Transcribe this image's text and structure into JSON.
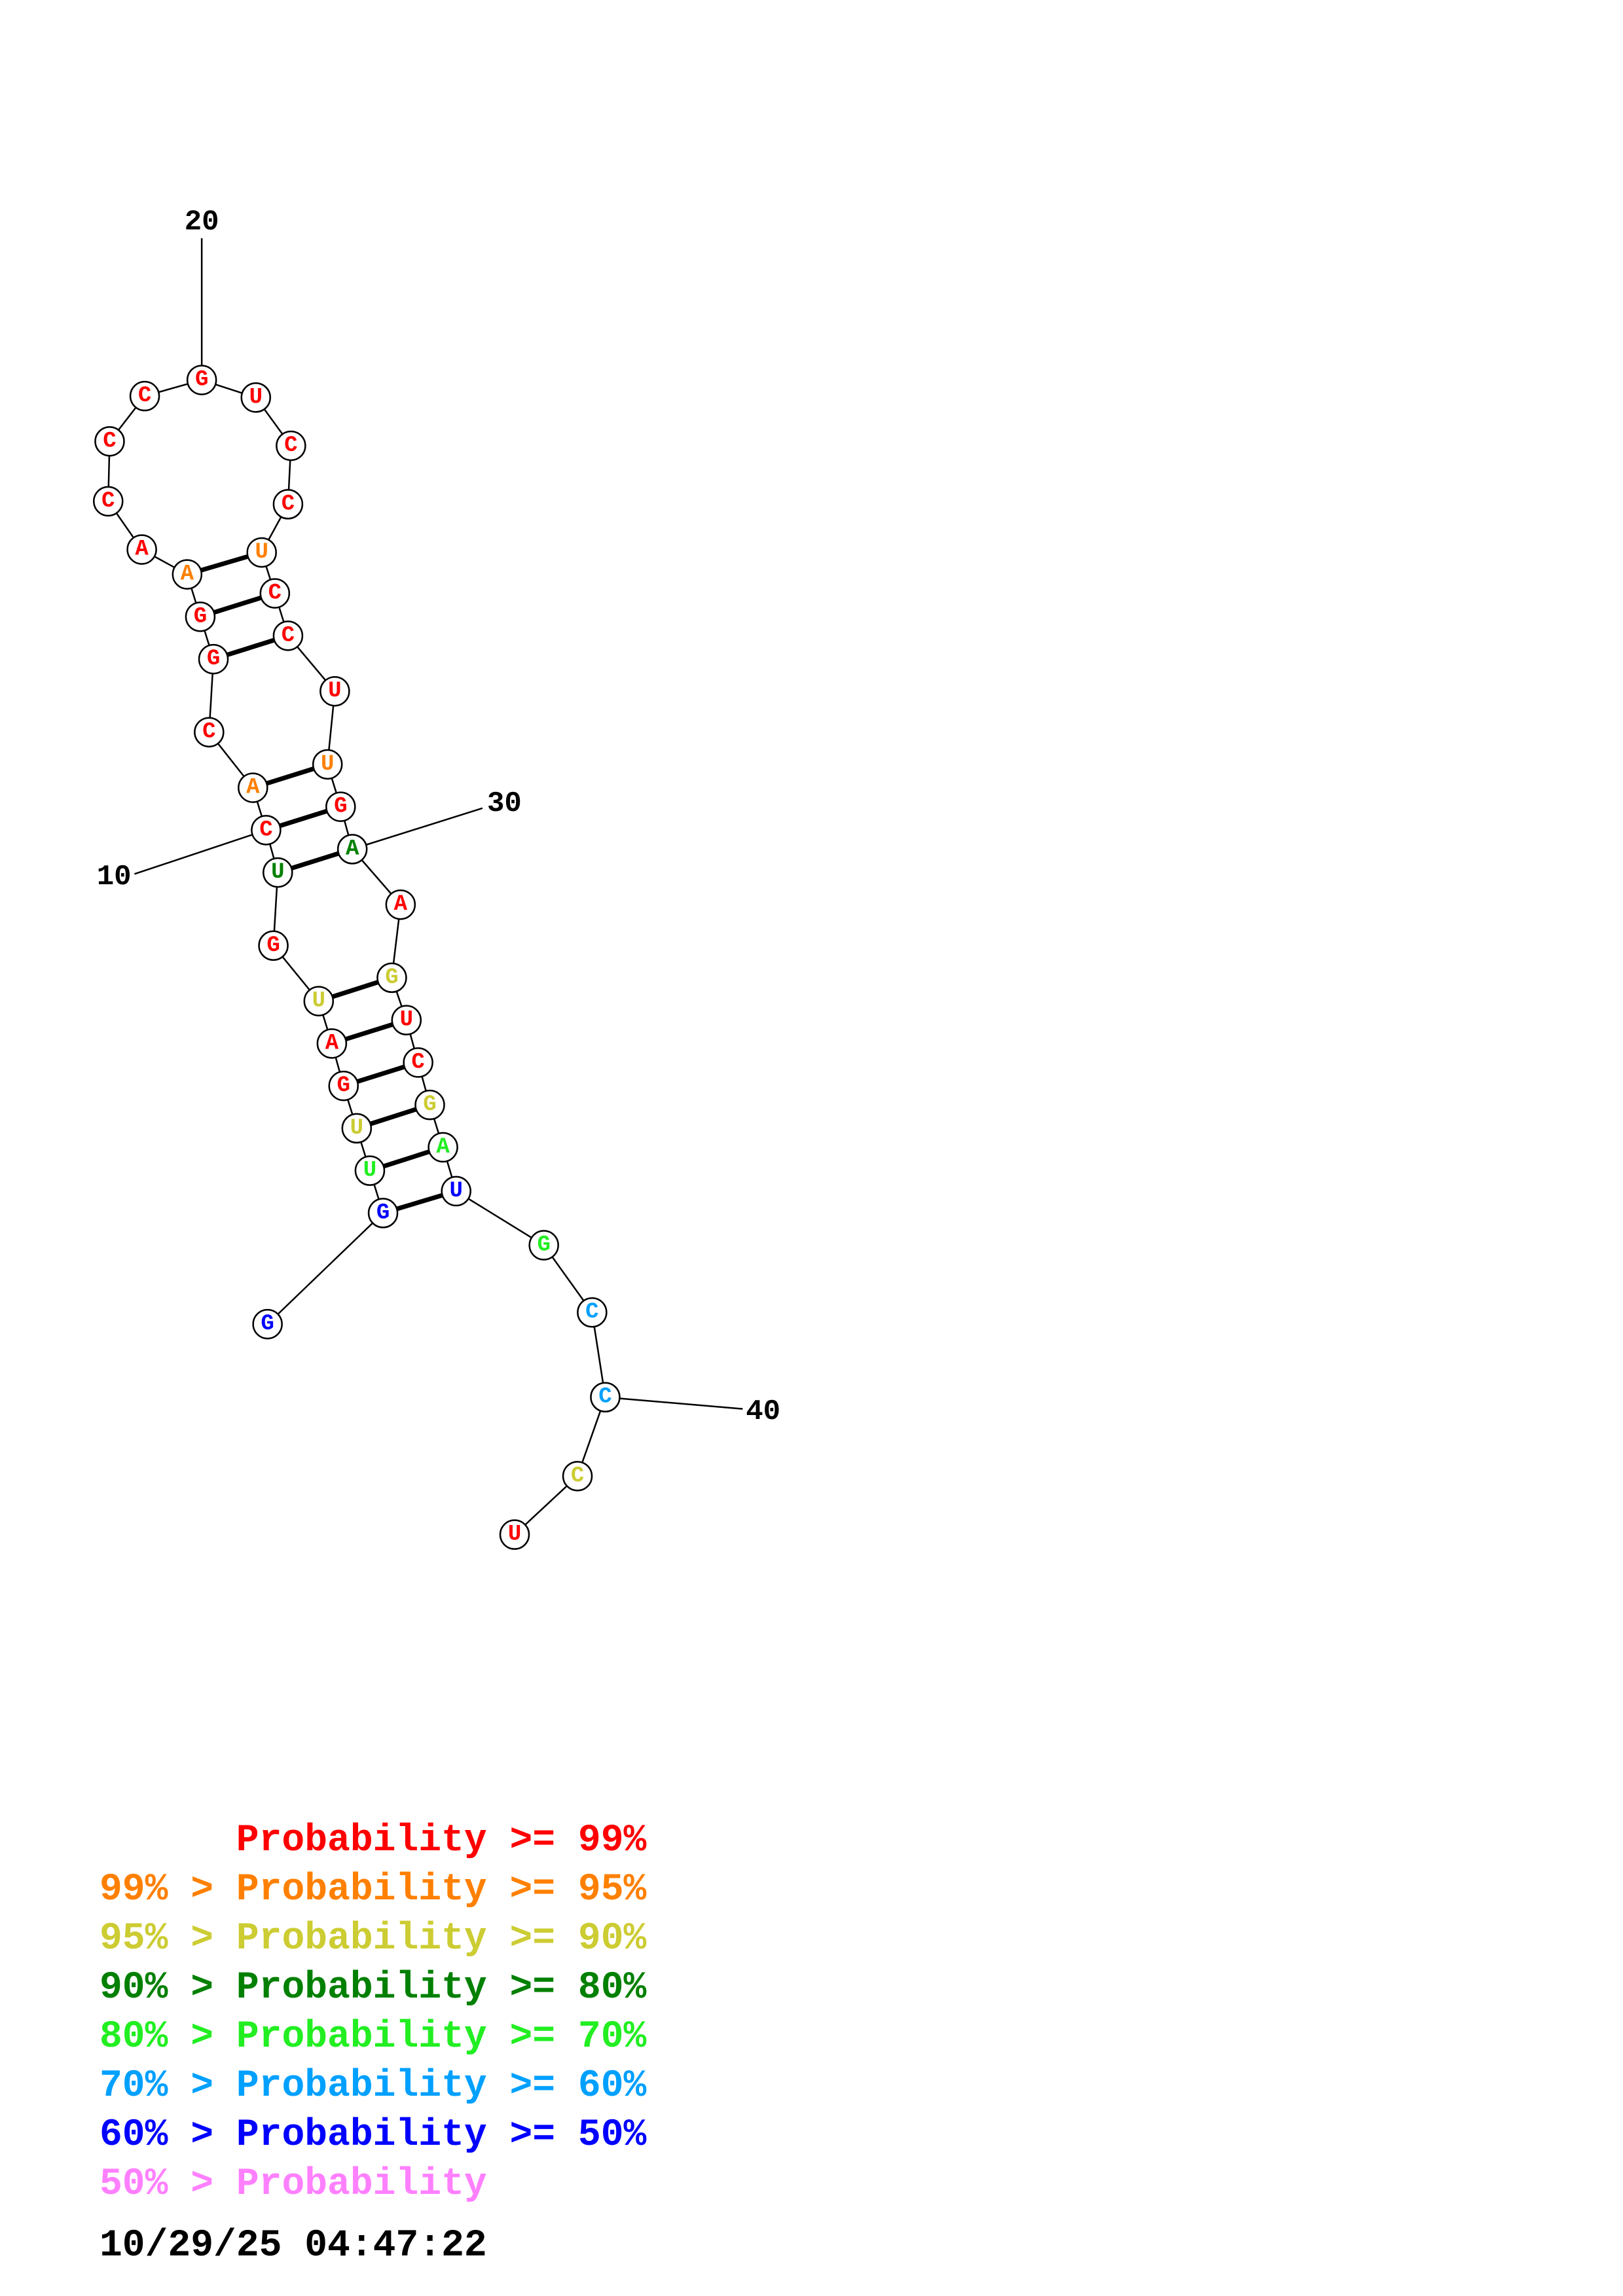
{
  "nodes": [
    {
      "label": "G",
      "color": "#0000ff"
    },
    {
      "label": "G",
      "color": "#0000ff"
    },
    {
      "label": "U",
      "color": "#22ee22"
    },
    {
      "label": "U",
      "color": "#cccc33"
    },
    {
      "label": "G",
      "color": "#ff0000"
    },
    {
      "label": "A",
      "color": "#ff0000"
    },
    {
      "label": "U",
      "color": "#cccc33"
    },
    {
      "label": "G",
      "color": "#ff0000"
    },
    {
      "label": "U",
      "color": "#008000"
    },
    {
      "label": "C",
      "color": "#ff0000"
    },
    {
      "label": "A",
      "color": "#ff8000"
    },
    {
      "label": "C",
      "color": "#ff0000"
    },
    {
      "label": "G",
      "color": "#ff0000"
    },
    {
      "label": "G",
      "color": "#ff0000"
    },
    {
      "label": "A",
      "color": "#ff8000"
    },
    {
      "label": "A",
      "color": "#ff0000"
    },
    {
      "label": "C",
      "color": "#ff0000"
    },
    {
      "label": "C",
      "color": "#ff0000"
    },
    {
      "label": "C",
      "color": "#ff0000"
    },
    {
      "label": "G",
      "color": "#ff0000"
    },
    {
      "label": "U",
      "color": "#ff0000"
    },
    {
      "label": "C",
      "color": "#ff0000"
    },
    {
      "label": "C",
      "color": "#ff0000"
    },
    {
      "label": "U",
      "color": "#ff8000"
    },
    {
      "label": "C",
      "color": "#ff0000"
    },
    {
      "label": "C",
      "color": "#ff0000"
    },
    {
      "label": "U",
      "color": "#ff0000"
    },
    {
      "label": "U",
      "color": "#ff8000"
    },
    {
      "label": "G",
      "color": "#ff0000"
    },
    {
      "label": "A",
      "color": "#008000"
    },
    {
      "label": "A",
      "color": "#ff0000"
    },
    {
      "label": "G",
      "color": "#cccc33"
    },
    {
      "label": "U",
      "color": "#ff0000"
    },
    {
      "label": "C",
      "color": "#ff0000"
    },
    {
      "label": "G",
      "color": "#cccc33"
    },
    {
      "label": "A",
      "color": "#22ee22"
    },
    {
      "label": "U",
      "color": "#0000ff"
    },
    {
      "label": "G",
      "color": "#22ee22"
    },
    {
      "label": "C",
      "color": "#00a0ff"
    },
    {
      "label": "C",
      "color": "#00a0ff"
    },
    {
      "label": "C",
      "color": "#cccc33"
    },
    {
      "label": "U",
      "color": "#ff0000"
    }
  ],
  "position_labels": [
    "10",
    "20",
    "30",
    "40"
  ],
  "legend": [
    {
      "text": "Probability >= 99%",
      "color": "#ff0000"
    },
    {
      "text": "99% > Probability >= 95%",
      "color": "#ff8000"
    },
    {
      "text": "95% > Probability >= 90%",
      "color": "#cccc33"
    },
    {
      "text": "90% > Probability >= 80%",
      "color": "#008000"
    },
    {
      "text": "80% > Probability >= 70%",
      "color": "#22ee22"
    },
    {
      "text": "70% > Probability >= 60%",
      "color": "#00a0ff"
    },
    {
      "text": "60% > Probability >= 50%",
      "color": "#0000ff"
    },
    {
      "text": "50% > Probability",
      "color": "#ff80ff"
    }
  ],
  "timestamp": "10/29/25 04:47:22"
}
